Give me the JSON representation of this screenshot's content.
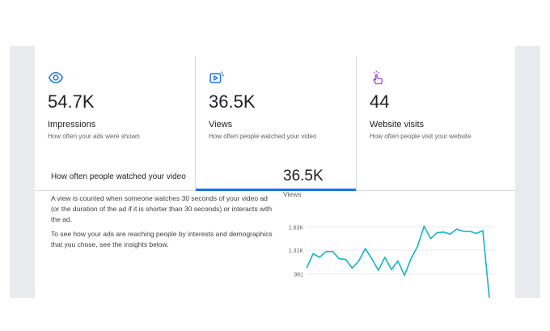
{
  "metrics": [
    {
      "value": "54.7K",
      "label": "Impressions",
      "desc": "How often your ads were shown",
      "icon": "eye-icon",
      "color": "#1a73e8"
    },
    {
      "value": "36.5K",
      "label": "Views",
      "desc": "How often people watched your video",
      "icon": "play-icon",
      "color": "#1a73e8",
      "selected": true
    },
    {
      "value": "44",
      "label": "Website visits",
      "desc": "How often people visit your website",
      "icon": "tap-icon",
      "color": "#a142f4"
    }
  ],
  "detail": {
    "title": "How often people watched your video",
    "p1": "A view is counted when someone watches 30 seconds of your video ad (or the duration of the ad if it is shorter than 30 seconds) or interacts with the ad.",
    "p2": "To see how your ads are reaching people by interests and demographics that you chose, see the insights below.",
    "value": "36.5K",
    "value_label": "Views"
  },
  "chart_data": {
    "type": "line",
    "yticks": [
      "1.63K",
      "1.31K",
      "981"
    ],
    "ytick_values": [
      1630,
      1310,
      981
    ],
    "ylim": [
      650,
      1780
    ],
    "series": [
      {
        "color": "#12b5cb",
        "values": [
          1060,
          1260,
          1210,
          1290,
          1290,
          1190,
          1180,
          1060,
          1160,
          1330,
          1190,
          1030,
          1210,
          1040,
          1160,
          960,
          1190,
          1360,
          1640,
          1470,
          1550,
          1560,
          1530,
          1600,
          1570,
          1570,
          1540,
          1580,
          650
        ]
      }
    ],
    "grid": true
  }
}
